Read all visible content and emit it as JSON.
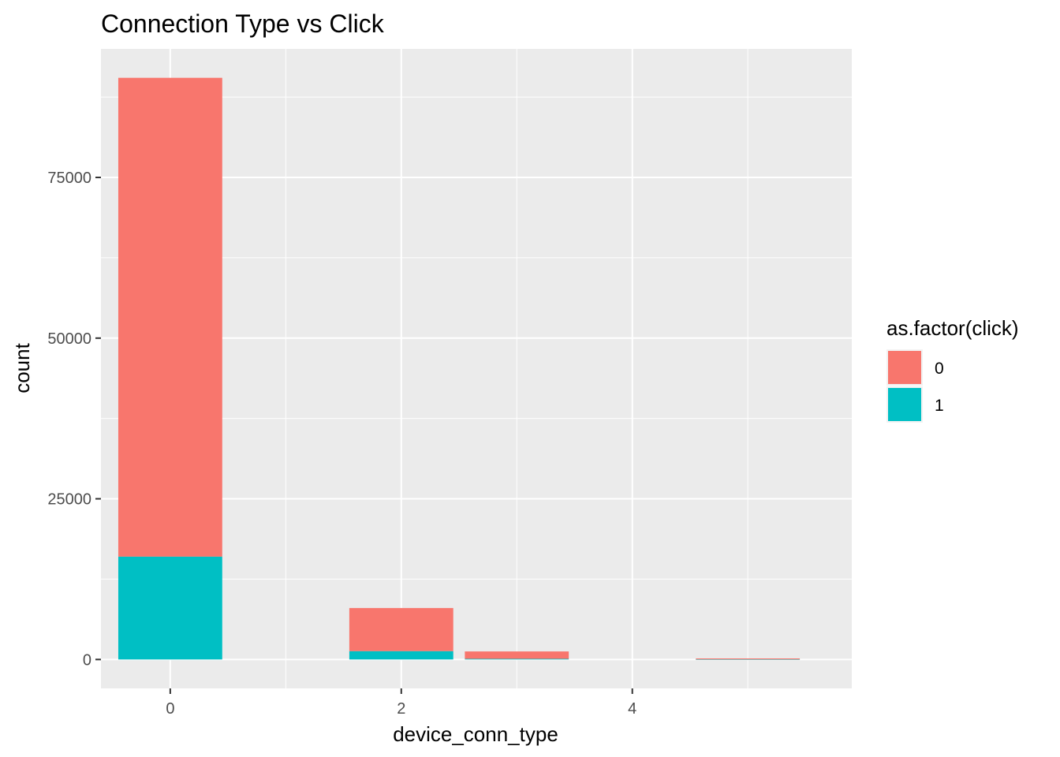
{
  "chart_data": {
    "type": "bar",
    "stacked": true,
    "title": "Connection Type vs Click",
    "xlabel": "device_conn_type",
    "ylabel": "count",
    "xlim": [
      -0.6,
      5.9
    ],
    "ylim": [
      -4500,
      95000
    ],
    "x_ticks": [
      0,
      2,
      4
    ],
    "x_tick_labels": [
      "0",
      "2",
      "4"
    ],
    "y_ticks": [
      0,
      25000,
      50000,
      75000
    ],
    "y_tick_labels": [
      "0",
      "25000",
      "50000",
      "75000"
    ],
    "grid": true,
    "background": "#ebebeb",
    "legend": {
      "title": "as.factor(click)",
      "position": "right",
      "entries": [
        {
          "label": "0",
          "color": "#f8766d"
        },
        {
          "label": "1",
          "color": "#00bfc4"
        }
      ]
    },
    "categories": [
      0,
      2,
      3,
      5
    ],
    "series": [
      {
        "name": "0",
        "color": "#f8766d",
        "values": [
          74500,
          6700,
          1150,
          150
        ]
      },
      {
        "name": "1",
        "color": "#00bfc4",
        "values": [
          16000,
          1300,
          100,
          10
        ]
      }
    ]
  }
}
